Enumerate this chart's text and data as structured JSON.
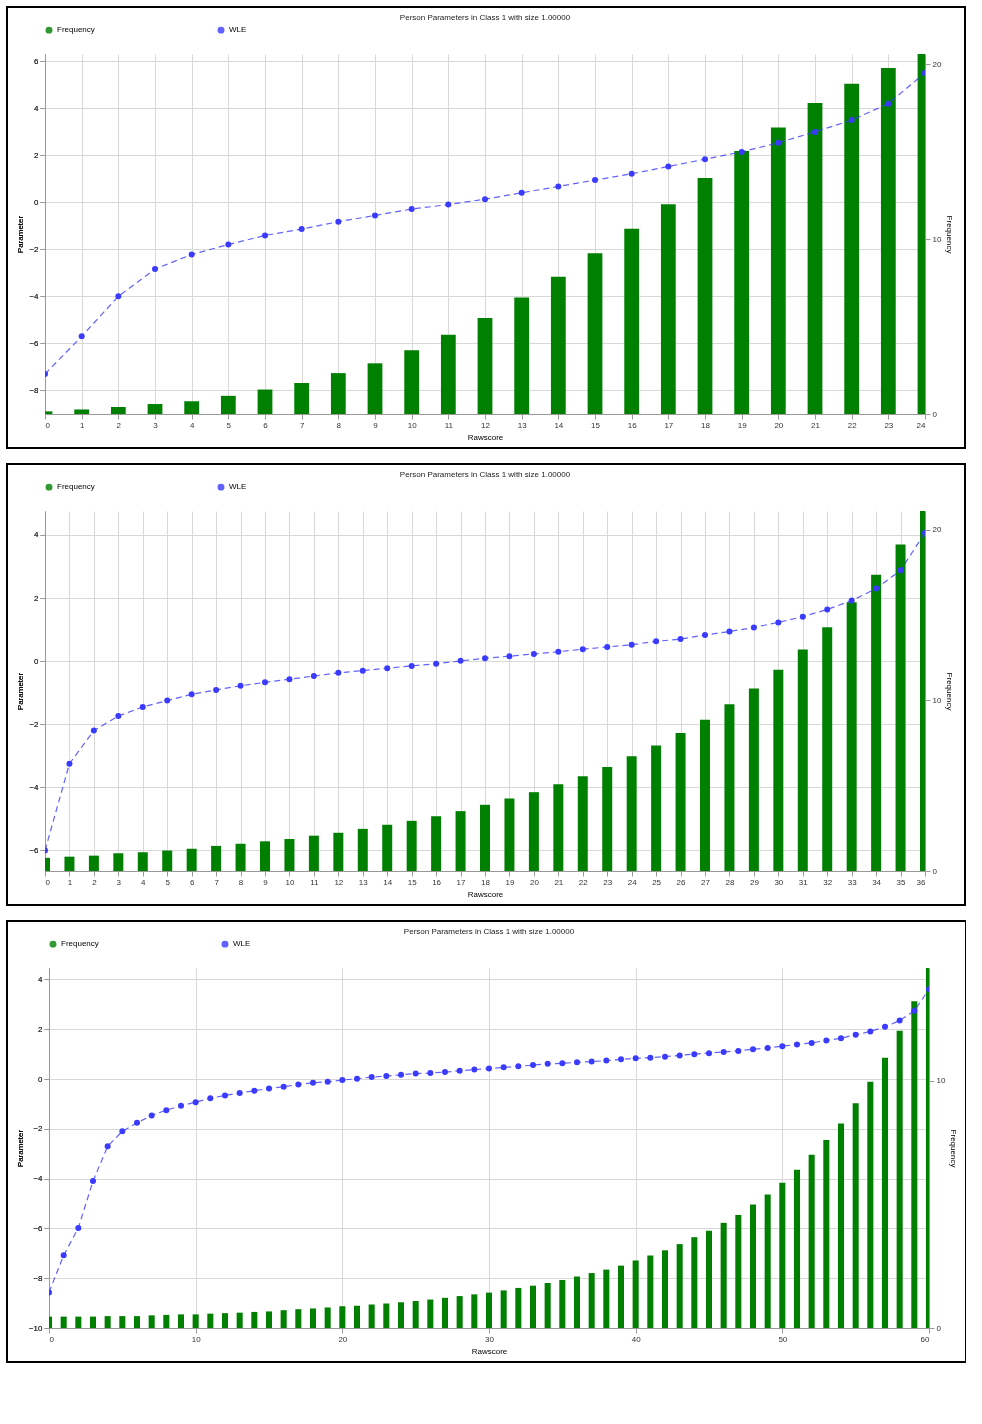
{
  "chart_data": [
    {
      "type": "bar",
      "title": "Person Parameters in Class 1 with size  1.00000",
      "xlabel": "Rawscore",
      "ylabel": "Parameter",
      "y2label": "Frequency",
      "x": [
        0,
        1,
        2,
        3,
        4,
        5,
        6,
        7,
        8,
        9,
        10,
        11,
        12,
        13,
        14,
        15,
        16,
        17,
        18,
        19,
        20,
        21,
        22,
        23,
        24
      ],
      "xlim": [
        0,
        24
      ],
      "xticks": [
        0,
        1,
        2,
        3,
        4,
        5,
        6,
        7,
        8,
        9,
        10,
        11,
        12,
        13,
        14,
        15,
        16,
        17,
        18,
        19,
        20,
        21,
        22,
        23,
        24
      ],
      "ylim": [
        -9,
        6.3
      ],
      "yticks": [
        -8,
        -6,
        -4,
        -2,
        0,
        2,
        4,
        6
      ],
      "y2lim": [
        0,
        20.6
      ],
      "y2ticks": [
        0,
        10,
        20
      ],
      "grid": true,
      "legend": "top",
      "marker": "circle",
      "line_style": "dashed",
      "series": [
        {
          "name": "Frequency",
          "color": "#008000",
          "axis": "y2",
          "values": [
            0.15,
            0.26,
            0.4,
            0.57,
            0.73,
            1.04,
            1.4,
            1.77,
            2.34,
            2.9,
            3.65,
            4.53,
            5.5,
            6.67,
            7.86,
            9.2,
            10.6,
            12.0,
            13.5,
            15.05,
            16.4,
            17.8,
            18.9,
            19.8,
            20.6
          ]
        },
        {
          "name": "WLE",
          "type": "line",
          "color": "#3b3bff",
          "values": [
            -7.3,
            -5.7,
            -4.0,
            -2.84,
            -2.22,
            -1.8,
            -1.41,
            -1.14,
            -0.83,
            -0.56,
            -0.29,
            -0.1,
            0.13,
            0.4,
            0.67,
            0.94,
            1.21,
            1.52,
            1.83,
            2.14,
            2.53,
            2.99,
            3.49,
            4.19,
            5.5
          ]
        }
      ]
    },
    {
      "type": "bar",
      "title": "Person Parameters in Class 1 with size  1.00000",
      "xlabel": "Rawscore",
      "ylabel": "Parameter",
      "y2label": "Frequency",
      "x": [
        0,
        1,
        2,
        3,
        4,
        5,
        6,
        7,
        8,
        9,
        10,
        11,
        12,
        13,
        14,
        15,
        16,
        17,
        18,
        19,
        20,
        21,
        22,
        23,
        24,
        25,
        26,
        27,
        28,
        29,
        30,
        31,
        32,
        33,
        34,
        35,
        36
      ],
      "xlim": [
        0,
        36
      ],
      "xticks": [
        0,
        1,
        2,
        3,
        4,
        5,
        6,
        7,
        8,
        9,
        10,
        11,
        12,
        13,
        14,
        15,
        16,
        17,
        18,
        19,
        20,
        21,
        22,
        23,
        24,
        25,
        26,
        27,
        28,
        29,
        30,
        31,
        32,
        33,
        34,
        35,
        36
      ],
      "ylim": [
        -6.65,
        4.76
      ],
      "yticks": [
        -6,
        -4,
        -2,
        0,
        2,
        4
      ],
      "y2lim": [
        0,
        21.1
      ],
      "y2ticks": [
        0,
        10,
        20
      ],
      "grid": true,
      "legend": "top",
      "marker": "circle",
      "line_style": "dashed",
      "series": [
        {
          "name": "Frequency",
          "color": "#008000",
          "axis": "y2",
          "values": [
            0.77,
            0.84,
            0.9,
            1.04,
            1.1,
            1.2,
            1.3,
            1.47,
            1.6,
            1.74,
            1.87,
            2.07,
            2.24,
            2.47,
            2.71,
            2.94,
            3.21,
            3.51,
            3.88,
            4.25,
            4.62,
            5.08,
            5.55,
            6.09,
            6.72,
            7.36,
            8.09,
            8.86,
            9.77,
            10.7,
            11.8,
            12.98,
            14.28,
            15.75,
            17.36,
            19.13,
            21.1
          ]
        },
        {
          "name": "WLE",
          "type": "line",
          "color": "#3b3bff",
          "values": [
            -6.0,
            -3.25,
            -2.2,
            -1.74,
            -1.45,
            -1.25,
            -1.05,
            -0.91,
            -0.78,
            -0.67,
            -0.57,
            -0.47,
            -0.37,
            -0.3,
            -0.22,
            -0.15,
            -0.08,
            0.01,
            0.09,
            0.16,
            0.23,
            0.3,
            0.38,
            0.45,
            0.52,
            0.63,
            0.7,
            0.83,
            0.94,
            1.07,
            1.23,
            1.41,
            1.64,
            1.92,
            2.3,
            2.88,
            4.07
          ]
        }
      ]
    },
    {
      "type": "bar",
      "title": "Person Parameters in Class 1 with size  1.00000",
      "xlabel": "Rawscore",
      "ylabel": "Parameter",
      "y2label": "Frequency",
      "x": [
        0,
        1,
        2,
        3,
        4,
        5,
        6,
        7,
        8,
        9,
        10,
        11,
        12,
        13,
        14,
        15,
        16,
        17,
        18,
        19,
        20,
        21,
        22,
        23,
        24,
        25,
        26,
        27,
        28,
        29,
        30,
        31,
        32,
        33,
        34,
        35,
        36,
        37,
        38,
        39,
        40,
        41,
        42,
        43,
        44,
        45,
        46,
        47,
        48,
        49,
        50,
        51,
        52,
        53,
        54,
        55,
        56,
        57,
        58,
        59,
        60
      ],
      "xlim": [
        0,
        60
      ],
      "xticks": [
        0,
        10,
        20,
        30,
        40,
        50,
        60
      ],
      "ylim": [
        -10,
        4.46
      ],
      "yticks": [
        -10,
        -8,
        -6,
        -4,
        -2,
        0,
        2,
        4
      ],
      "y2lim": [
        0,
        14.55
      ],
      "y2ticks": [
        0,
        10
      ],
      "grid": true,
      "legend": "top",
      "marker": "circle",
      "line_style": "dashed",
      "series": [
        {
          "name": "Frequency",
          "color": "#008000",
          "axis": "y2",
          "values": [
            0.46,
            0.46,
            0.46,
            0.46,
            0.48,
            0.48,
            0.48,
            0.51,
            0.53,
            0.55,
            0.55,
            0.58,
            0.6,
            0.62,
            0.65,
            0.67,
            0.72,
            0.76,
            0.79,
            0.83,
            0.88,
            0.9,
            0.95,
            0.99,
            1.04,
            1.09,
            1.15,
            1.22,
            1.29,
            1.36,
            1.43,
            1.52,
            1.62,
            1.71,
            1.82,
            1.94,
            2.08,
            2.22,
            2.36,
            2.52,
            2.73,
            2.93,
            3.14,
            3.39,
            3.67,
            3.93,
            4.25,
            4.57,
            4.99,
            5.4,
            5.87,
            6.4,
            7.0,
            7.6,
            8.27,
            9.08,
            9.95,
            10.92,
            12.01,
            13.21,
            14.55
          ]
        },
        {
          "name": "WLE",
          "type": "line",
          "color": "#3b3bff",
          "values": [
            -8.57,
            -7.08,
            -5.98,
            -4.1,
            -2.7,
            -2.1,
            -1.76,
            -1.46,
            -1.25,
            -1.07,
            -0.93,
            -0.77,
            -0.66,
            -0.56,
            -0.47,
            -0.38,
            -0.31,
            -0.22,
            -0.15,
            -0.11,
            -0.04,
            0.01,
            0.08,
            0.12,
            0.17,
            0.22,
            0.24,
            0.28,
            0.33,
            0.38,
            0.42,
            0.47,
            0.51,
            0.56,
            0.61,
            0.63,
            0.67,
            0.7,
            0.74,
            0.79,
            0.83,
            0.86,
            0.9,
            0.95,
            1.0,
            1.04,
            1.09,
            1.13,
            1.2,
            1.25,
            1.32,
            1.39,
            1.45,
            1.55,
            1.64,
            1.78,
            1.91,
            2.1,
            2.35,
            2.74,
            3.61
          ]
        }
      ]
    }
  ]
}
